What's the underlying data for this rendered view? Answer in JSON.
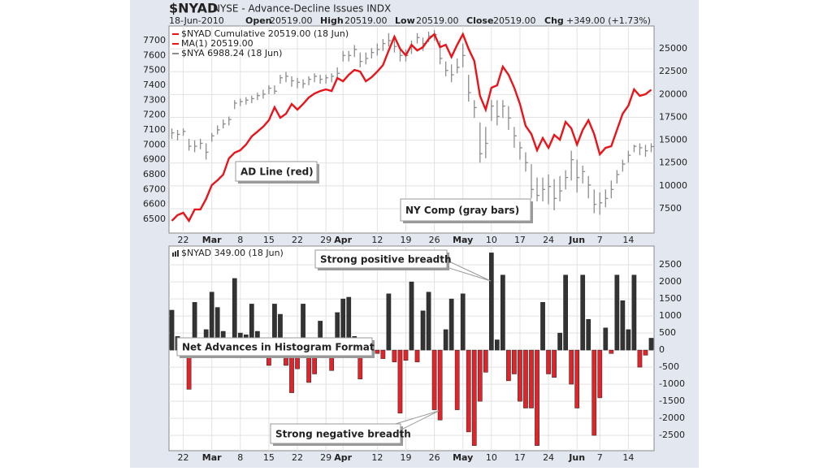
{
  "header": {
    "symbol": "$NYAD",
    "description": "NYSE - Advance-Decline Issues INDX",
    "date": "18-Jun-2010",
    "quote": [
      {
        "label": "Open",
        "value": "20519.00"
      },
      {
        "label": "High",
        "value": "20519.00"
      },
      {
        "label": "Low",
        "value": "20519.00"
      },
      {
        "label": "Close",
        "value": "20519.00"
      },
      {
        "label": "Chg",
        "value": "+349.00 (+1.73%)"
      }
    ]
  },
  "chart_data": [
    {
      "type": "price",
      "categories": [
        null,
        null,
        "22",
        null,
        null,
        null,
        null,
        "Mar",
        null,
        null,
        null,
        null,
        "8",
        null,
        null,
        null,
        null,
        "15",
        null,
        null,
        null,
        null,
        "22",
        null,
        null,
        null,
        null,
        "29",
        null,
        null,
        "Apr",
        null,
        null,
        null,
        null,
        null,
        "12",
        null,
        null,
        null,
        null,
        "19",
        null,
        null,
        null,
        null,
        "26",
        null,
        null,
        null,
        null,
        "May",
        null,
        null,
        null,
        null,
        "10",
        null,
        null,
        null,
        null,
        "17",
        null,
        null,
        null,
        null,
        "24",
        null,
        null,
        null,
        null,
        "Jun",
        null,
        null,
        null,
        "7",
        null,
        null,
        null,
        null,
        "14",
        null,
        null,
        null,
        null
      ],
      "legend": [
        {
          "text": "$NYAD Cumulative 20519.00 (18 Jun)",
          "color": "#e8141a"
        },
        {
          "text": "MA(1) 20519.00",
          "color": "#e8141a"
        },
        {
          "text": "$NYA 6988.24 (18 Jun)",
          "color": "#8c8c8c"
        }
      ],
      "annotations": [
        {
          "text": "AD Line (red)",
          "color": "#e8141a"
        },
        {
          "text": "NY Comp (gray bars)",
          "color": "#777777"
        }
      ],
      "ylim": [
        6407,
        7798
      ],
      "yticks": [
        6500,
        6600,
        6700,
        6800,
        6900,
        7000,
        7100,
        7200,
        7300,
        7400,
        7500,
        7600,
        7700
      ],
      "y2lim": [
        4830,
        27500
      ],
      "y2ticks": [
        7500,
        10000,
        12500,
        15000,
        17500,
        20000,
        22500,
        25000
      ],
      "grid": true,
      "series": [
        {
          "kind": "line",
          "axis": "y2",
          "color": "#e8141a",
          "values": [
            6170,
            6790,
            7050,
            6170,
            7410,
            7410,
            8570,
            10080,
            10610,
            11230,
            13010,
            13630,
            13900,
            14520,
            15410,
            15940,
            16470,
            17180,
            18600,
            17450,
            17890,
            18960,
            18340,
            18960,
            19670,
            20110,
            20380,
            20560,
            20380,
            21800,
            21450,
            22160,
            22690,
            22510,
            21450,
            21890,
            22510,
            23220,
            24820,
            26330,
            25000,
            24290,
            25440,
            24820,
            25180,
            26070,
            26600,
            25180,
            25440,
            24110,
            25440,
            26600,
            25000,
            23670,
            19850,
            18340,
            20740,
            21000,
            23050,
            22160,
            20740,
            18960,
            16560,
            15670,
            13900,
            15230,
            14160,
            15580,
            15050,
            17000,
            16290,
            14520,
            16120,
            17180,
            15670,
            13450,
            14160,
            14340,
            16120,
            17890,
            18780,
            20560,
            19850,
            20030,
            20519
          ]
        },
        {
          "kind": "hlc",
          "axis": "y",
          "color": "#8c8c8c",
          "high": [
            7110,
            7100,
            7110,
            7040,
            7030,
            7040,
            7010,
            7080,
            7130,
            7170,
            7190,
            7300,
            7310,
            7320,
            7330,
            7350,
            7370,
            7400,
            7400,
            7470,
            7490,
            7460,
            7450,
            7440,
            7460,
            7480,
            7470,
            7470,
            7480,
            7520,
            7630,
            7630,
            7670,
            7620,
            7620,
            7650,
            7680,
            7710,
            7750,
            7720,
            7650,
            7640,
            7700,
            7750,
            7720,
            7760,
            7770,
            7700,
            7560,
            7540,
            7580,
            7680,
            7470,
            7300,
            7150,
            7120,
            7300,
            7300,
            7300,
            7260,
            7120,
            7020,
            6950,
            6870,
            6780,
            6780,
            6800,
            6770,
            6790,
            6830,
            6960,
            6900,
            6860,
            6790,
            6700,
            6680,
            6700,
            6760,
            6830,
            6900,
            6960,
            7000,
            7010,
            7000,
            7010
          ],
          "low": [
            7040,
            7030,
            7060,
            6960,
            6950,
            6970,
            6900,
            7020,
            7070,
            7110,
            7130,
            7240,
            7260,
            7270,
            7280,
            7300,
            7310,
            7340,
            7340,
            7410,
            7420,
            7390,
            7380,
            7380,
            7400,
            7420,
            7410,
            7410,
            7420,
            7450,
            7560,
            7560,
            7590,
            7520,
            7540,
            7580,
            7600,
            7630,
            7660,
            7620,
            7560,
            7560,
            7610,
            7680,
            7630,
            7690,
            7700,
            7540,
            7460,
            7420,
            7480,
            7520,
            7290,
            7180,
            6880,
            6910,
            7160,
            7130,
            7180,
            7100,
            6980,
            6900,
            6820,
            6640,
            6620,
            6620,
            6600,
            6560,
            6620,
            6700,
            6760,
            6680,
            6740,
            6640,
            6540,
            6530,
            6580,
            6640,
            6740,
            6820,
            6880,
            6950,
            6930,
            6920,
            6950
          ],
          "close": [
            7080,
            7070,
            7090,
            6990,
            6990,
            7010,
            6950,
            7060,
            7100,
            7140,
            7170,
            7280,
            7290,
            7300,
            7310,
            7330,
            7340,
            7380,
            7360,
            7450,
            7460,
            7430,
            7420,
            7410,
            7440,
            7460,
            7440,
            7450,
            7460,
            7480,
            7600,
            7600,
            7640,
            7560,
            7580,
            7620,
            7640,
            7680,
            7700,
            7660,
            7600,
            7600,
            7660,
            7720,
            7680,
            7730,
            7740,
            7580,
            7500,
            7470,
            7520,
            7600,
            7350,
            7250,
            6940,
            7010,
            7260,
            7190,
            7260,
            7180,
            7060,
            6980,
            6880,
            6700,
            6660,
            6700,
            6720,
            6640,
            6690,
            6780,
            6900,
            6780,
            6820,
            6730,
            6600,
            6610,
            6640,
            6700,
            6800,
            6870,
            6930,
            6990,
            6980,
            6960,
            6988.24
          ]
        }
      ]
    },
    {
      "type": "bar",
      "legend": [
        {
          "text": "$NYAD 349.00 (18 Jun)",
          "color": "#222222"
        }
      ],
      "annotations": [
        {
          "text": "Strong positive breadth"
        },
        {
          "text": "Net Advances in Histogram Format"
        },
        {
          "text": "Strong negative breadth"
        }
      ],
      "up_color": "#333333",
      "down_color": "#e0242a",
      "ylim": [
        -2950,
        3050
      ],
      "yticks": [
        -2500,
        -2000,
        -1500,
        -1000,
        -500,
        0,
        500,
        1000,
        1500,
        2000,
        2500
      ],
      "grid": true,
      "values": [
        1170,
        400,
        100,
        -1150,
        1400,
        150,
        600,
        1700,
        1250,
        550,
        -150,
        2100,
        500,
        450,
        1350,
        550,
        -50,
        -450,
        1350,
        1050,
        -450,
        -1250,
        -550,
        1350,
        -950,
        -700,
        850,
        250,
        -600,
        1100,
        1500,
        1550,
        400,
        -850,
        -50,
        -150,
        -100,
        -250,
        1650,
        -350,
        -1850,
        -300,
        2000,
        -350,
        1150,
        1700,
        -1750,
        -2050,
        600,
        1500,
        -1750,
        1650,
        -2400,
        -2800,
        -1500,
        -650,
        2850,
        300,
        2200,
        -900,
        -700,
        -1500,
        -1700,
        -1700,
        -2800,
        1400,
        -700,
        -800,
        500,
        2200,
        -1000,
        -1700,
        2200,
        900,
        -2500,
        -1400,
        650,
        -100,
        2200,
        1450,
        600,
        2200,
        -500,
        -150,
        349
      ]
    }
  ]
}
